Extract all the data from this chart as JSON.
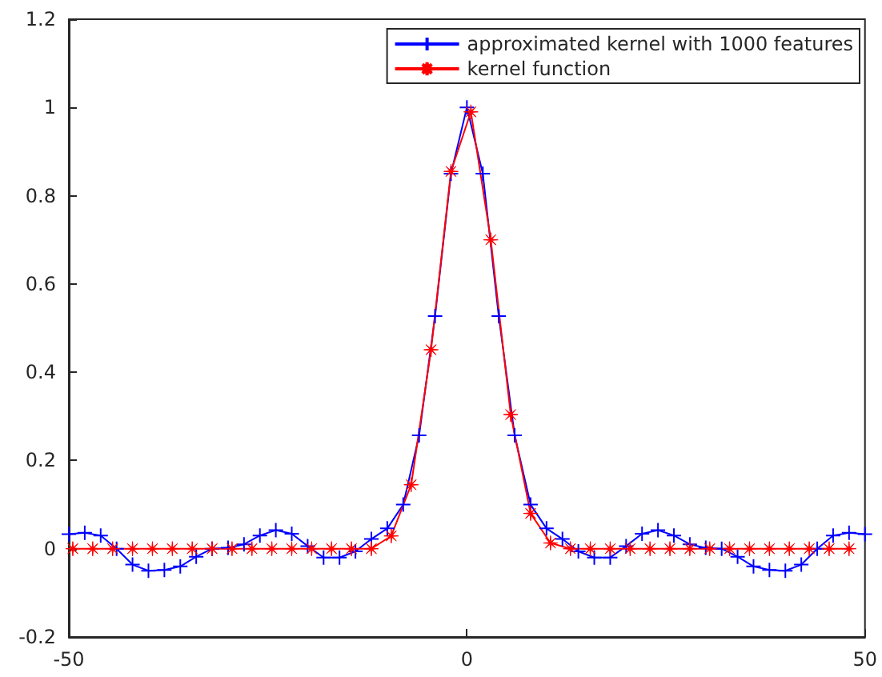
{
  "chart_data": {
    "type": "line",
    "series": [
      {
        "name": "approximated kernel with 1000 features",
        "color": "#0000ff",
        "marker": "cross",
        "x": [
          -50,
          -48,
          -46,
          -44,
          -42,
          -40,
          -38,
          -36,
          -34,
          -32,
          -30,
          -28,
          -26,
          -24,
          -22,
          -20,
          -18,
          -16,
          -14,
          -12,
          -10,
          -8,
          -6,
          -4,
          -2,
          0,
          2,
          4,
          6,
          8,
          10,
          12,
          14,
          16,
          18,
          20,
          22,
          24,
          26,
          28,
          30,
          32,
          34,
          36,
          38,
          40,
          42,
          44,
          46,
          48,
          50
        ],
        "values": [
          0.033,
          0.036,
          0.03,
          0.0,
          -0.036,
          -0.05,
          -0.048,
          -0.04,
          -0.018,
          0.0,
          0.002,
          0.01,
          0.03,
          0.042,
          0.034,
          0.006,
          -0.02,
          -0.02,
          -0.006,
          0.022,
          0.046,
          0.1,
          0.257,
          0.527,
          0.85,
          1.0,
          0.85,
          0.527,
          0.257,
          0.1,
          0.046,
          0.022,
          -0.006,
          -0.02,
          -0.02,
          0.006,
          0.034,
          0.042,
          0.03,
          0.01,
          0.002,
          0.0,
          -0.018,
          -0.04,
          -0.048,
          -0.05,
          -0.036,
          0.0,
          0.03,
          0.036,
          0.033
        ]
      },
      {
        "name": "kernel function",
        "color": "#ff0000",
        "marker": "star",
        "x": [
          -49.5,
          -47,
          -44.5,
          -42,
          -39.5,
          -37,
          -34.5,
          -32,
          -29.5,
          -27,
          -24.5,
          -22,
          -19.5,
          -17,
          -14.5,
          -12,
          -9.5,
          -7,
          -4.5,
          -2,
          0.5,
          3,
          5.5,
          8,
          10.5,
          13,
          15.5,
          18,
          20.5,
          23,
          25.5,
          28,
          30.5,
          33,
          35.5,
          38,
          40.5,
          43,
          45.5,
          48
        ],
        "values": [
          0,
          0,
          0,
          0,
          0,
          0,
          0,
          0,
          0,
          0,
          0,
          0,
          0,
          0,
          0,
          0,
          0.029,
          0.145,
          0.451,
          0.855,
          0.99,
          0.7,
          0.304,
          0.08,
          0.013,
          0,
          0,
          0,
          0,
          0,
          0,
          0,
          0,
          0,
          0,
          0,
          0,
          0,
          0,
          0
        ]
      }
    ],
    "xlim": [
      -50,
      50
    ],
    "xticks": [
      -50,
      0,
      50
    ],
    "ylim": [
      -0.2,
      1.2
    ],
    "yticks": [
      -0.2,
      0,
      0.2,
      0.4,
      0.6,
      0.8,
      1,
      1.2
    ],
    "grid": false,
    "legend": "top right"
  }
}
